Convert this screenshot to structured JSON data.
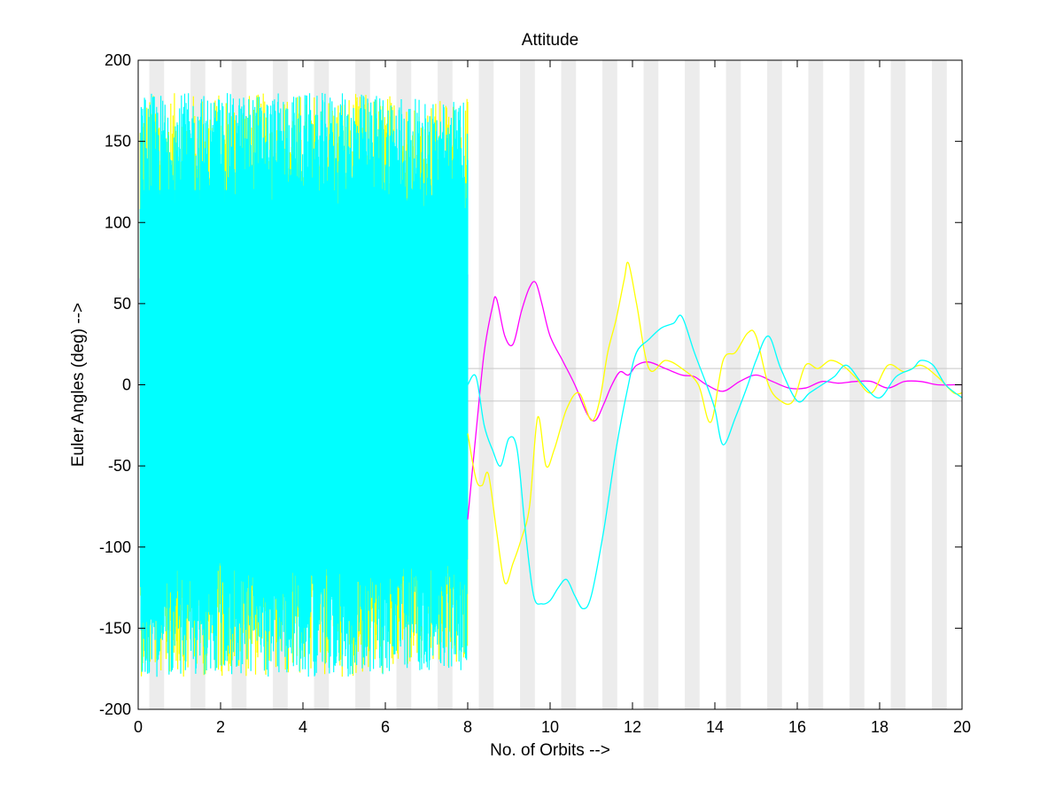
{
  "chart_data": {
    "type": "line",
    "title": "Attitude",
    "xlabel": "No. of Orbits -->",
    "ylabel": "Euler Angles (deg) -->",
    "xlim": [
      0,
      20
    ],
    "ylim": [
      -200,
      200
    ],
    "x_ticks": [
      0,
      2,
      4,
      6,
      8,
      10,
      12,
      14,
      16,
      18,
      20
    ],
    "y_ticks": [
      -200,
      -150,
      -100,
      -50,
      0,
      50,
      100,
      150,
      200
    ],
    "grid": false,
    "legend": "none",
    "reference_lines": [
      10,
      -10
    ],
    "eclipse_bands": {
      "orbit_period": 1.0,
      "band_start_offset": 0.27,
      "band_width": 0.36,
      "color": "#ececec"
    },
    "tumble_region": {
      "x_start": 0.05,
      "x_end": 8.0,
      "peak_amplitude": 180
    },
    "series": [
      {
        "color": "#ff00ff",
        "x": [
          8.0,
          8.2,
          8.4,
          8.6,
          8.7,
          8.9,
          9.1,
          9.3,
          9.5,
          9.65,
          9.8,
          10.0,
          10.3,
          10.6,
          10.9,
          11.1,
          11.3,
          11.5,
          11.7,
          11.9,
          12.1,
          12.4,
          12.8,
          13.2,
          13.5,
          13.8,
          14.2,
          14.6,
          15.0,
          15.4,
          15.8,
          16.2,
          16.6,
          17.0,
          17.4,
          17.8,
          18.2,
          18.6,
          19.0,
          19.4,
          19.8,
          20.0
        ],
        "y": [
          -83,
          -30,
          20,
          48,
          53,
          30,
          25,
          45,
          60,
          63,
          50,
          30,
          15,
          0,
          -18,
          -22,
          -12,
          0,
          8,
          6,
          12,
          14,
          10,
          6,
          5,
          0,
          -4,
          2,
          6,
          2,
          -2,
          -2,
          2,
          1,
          2,
          2,
          -2,
          2,
          2,
          0,
          0,
          0
        ]
      },
      {
        "color": "#ffff00",
        "x": [
          8.0,
          8.2,
          8.35,
          8.5,
          8.7,
          8.9,
          9.1,
          9.3,
          9.5,
          9.7,
          9.9,
          10.1,
          10.4,
          10.7,
          11.0,
          11.2,
          11.4,
          11.6,
          11.8,
          11.9,
          12.1,
          12.4,
          12.8,
          13.2,
          13.6,
          13.9,
          14.2,
          14.5,
          14.8,
          15.0,
          15.3,
          15.6,
          15.9,
          16.2,
          16.5,
          16.8,
          17.1,
          17.4,
          17.8,
          18.2,
          18.6,
          19.0,
          19.4,
          19.8,
          20.0
        ],
        "y": [
          -30,
          -58,
          -62,
          -55,
          -90,
          -122,
          -110,
          -95,
          -75,
          -20,
          -50,
          -40,
          -15,
          -5,
          -22,
          -10,
          20,
          40,
          65,
          75,
          50,
          10,
          15,
          10,
          0,
          -23,
          15,
          20,
          32,
          30,
          0,
          -10,
          -10,
          12,
          10,
          15,
          12,
          5,
          -5,
          12,
          8,
          12,
          5,
          -5,
          -5
        ]
      },
      {
        "color": "#00ffff",
        "x": [
          8.0,
          8.2,
          8.4,
          8.6,
          8.8,
          9.0,
          9.2,
          9.4,
          9.6,
          9.8,
          10.0,
          10.2,
          10.4,
          10.6,
          10.8,
          11.0,
          11.3,
          11.6,
          11.9,
          12.1,
          12.4,
          12.7,
          13.0,
          13.2,
          13.5,
          13.8,
          14.0,
          14.2,
          14.5,
          14.8,
          15.0,
          15.3,
          15.6,
          16.0,
          16.3,
          16.6,
          16.9,
          17.2,
          17.6,
          18.0,
          18.4,
          18.8,
          19.0,
          19.3,
          19.6,
          20.0
        ],
        "y": [
          0,
          5,
          -25,
          -40,
          -50,
          -33,
          -40,
          -90,
          -130,
          -135,
          -133,
          -125,
          -120,
          -130,
          -138,
          -130,
          -90,
          -40,
          0,
          20,
          28,
          35,
          38,
          42,
          20,
          0,
          -15,
          -37,
          -20,
          0,
          15,
          30,
          10,
          -10,
          -5,
          0,
          5,
          12,
          0,
          -8,
          5,
          10,
          15,
          12,
          0,
          -8
        ]
      }
    ]
  }
}
